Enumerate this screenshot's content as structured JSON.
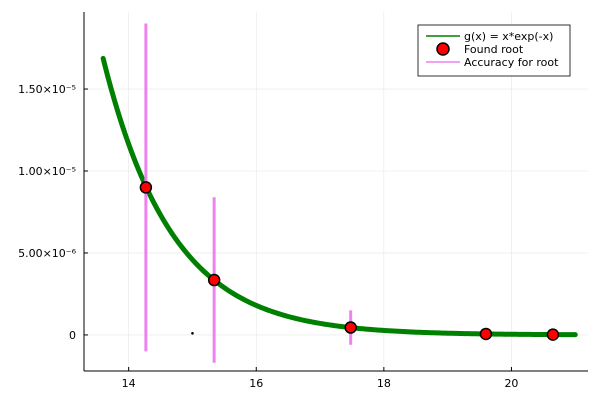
{
  "chart_data": {
    "type": "line",
    "title": "",
    "xlabel": "",
    "ylabel": "",
    "xlim": [
      13.3,
      21.2
    ],
    "ylim": [
      -2.2e-06,
      1.97e-05
    ],
    "grid": true,
    "legend_position": "top-right",
    "x_ticks": [
      {
        "value": 14,
        "label": "14"
      },
      {
        "value": 16,
        "label": "16"
      },
      {
        "value": 18,
        "label": "18"
      },
      {
        "value": 20,
        "label": "20"
      }
    ],
    "y_ticks": [
      {
        "value": 0,
        "label": "0"
      },
      {
        "value": 5e-06,
        "label": "5.00×10⁻⁶"
      },
      {
        "value": 1e-05,
        "label": "1.00×10⁻⁵"
      },
      {
        "value": 1.5e-05,
        "label": "1.50×10⁻⁵"
      }
    ],
    "series": [
      {
        "name": "g(x) = x*exp(-x)",
        "type": "line",
        "function": "x*exp(-x)",
        "x_range": [
          13.6,
          21.0
        ],
        "color": "#008000"
      },
      {
        "name": "Found root",
        "type": "scatter",
        "x": [
          14.27,
          15.34,
          17.48,
          19.6,
          20.65
        ],
        "y": [
          9e-06,
          3.35e-06,
          4.5e-07,
          6e-08,
          2e-08
        ],
        "color": "#ff0000"
      },
      {
        "name": "Accuracy for root",
        "type": "errorbar",
        "x": [
          14.27,
          15.34,
          17.48
        ],
        "ylow": [
          -1e-06,
          -1.7e-06,
          -6e-07
        ],
        "yhigh": [
          1.9e-05,
          8.4e-06,
          1.5e-06
        ],
        "color": "#ee82ee"
      }
    ],
    "annotations": [
      {
        "type": "point",
        "x": 15.0,
        "y": 1e-07,
        "color": "#000000"
      }
    ]
  }
}
